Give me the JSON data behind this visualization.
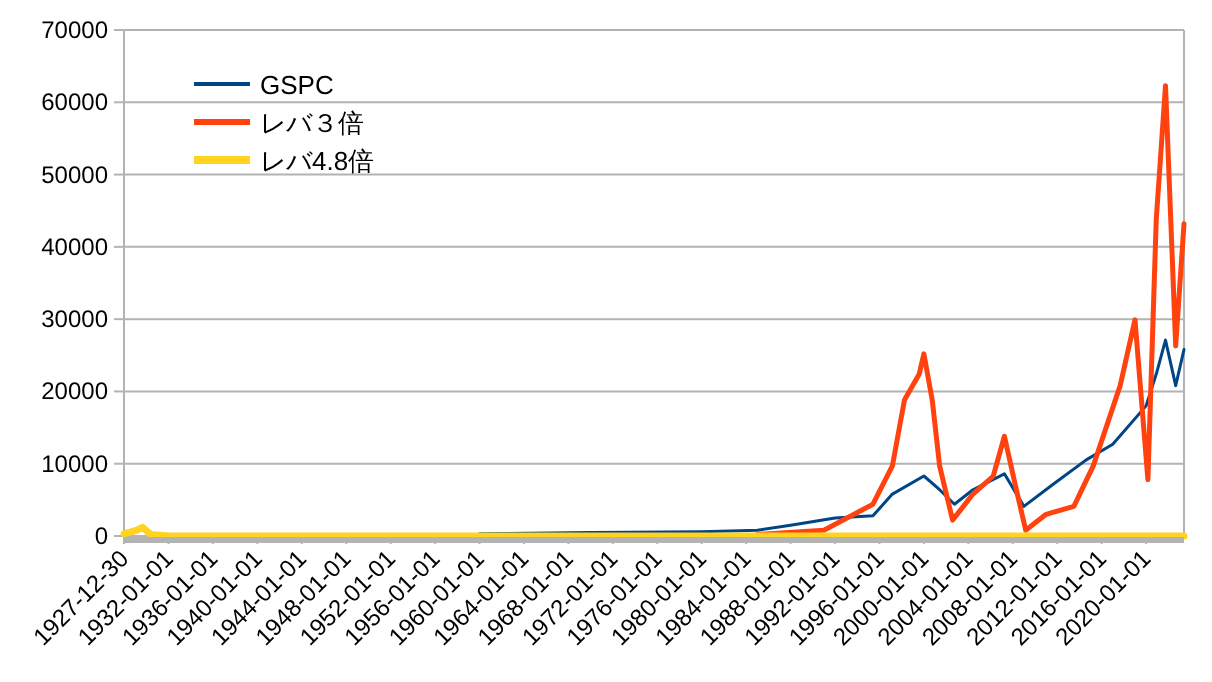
{
  "chart_data": {
    "type": "line",
    "xlim": [
      "1927-12-30",
      "2023-06-01"
    ],
    "xticks": [
      "1927-12-30",
      "1932-01-01",
      "1936-01-01",
      "1940-01-01",
      "1944-01-01",
      "1948-01-01",
      "1952-01-01",
      "1956-01-01",
      "1960-01-01",
      "1964-01-01",
      "1968-01-01",
      "1972-01-01",
      "1976-01-01",
      "1980-01-01",
      "1984-01-01",
      "1988-01-01",
      "1992-01-01",
      "1996-01-01",
      "2000-01-01",
      "2004-01-01",
      "2008-01-01",
      "2012-01-01",
      "2016-01-01",
      "2020-01-01"
    ],
    "ylim": [
      0,
      70000
    ],
    "yticks": [
      0,
      10000,
      20000,
      30000,
      40000,
      50000,
      60000,
      70000
    ],
    "grid": "y",
    "legend": "top left",
    "marker": "none",
    "line_style": "solid",
    "series": [
      {
        "name": "GSPC",
        "color": "#004586",
        "x": [
          "1960-01",
          "1970-01",
          "1980-01",
          "1985-01",
          "1988-01",
          "1992-01",
          "1995-06",
          "1997-03",
          "2000-01",
          "2001-06",
          "2002-10",
          "2004-06",
          "2007-04",
          "2009-01",
          "2011-09",
          "2014-08",
          "2017-01",
          "2020-01",
          "2020-12",
          "2021-10",
          "2022-09",
          "2023-06"
        ],
        "values": [
          300,
          500,
          600,
          800,
          1500,
          2500,
          2800,
          5800,
          8300,
          6400,
          4400,
          6400,
          8600,
          4100,
          7200,
          10500,
          12700,
          18000,
          22400,
          27100,
          20800,
          25800
        ]
      },
      {
        "name": "レバ３倍",
        "color": "#ff420e",
        "x": [
          "1985-01",
          "1991-01",
          "1995-06",
          "1997-03",
          "1998-04",
          "1999-08",
          "2000-01",
          "2000-10",
          "2001-06",
          "2002-08",
          "2004-06",
          "2006-04",
          "2007-04",
          "2008-04",
          "2009-03",
          "2011-01",
          "2013-07",
          "2015-04",
          "2017-09",
          "2019-01",
          "2020-03",
          "2020-12",
          "2021-10",
          "2022-09",
          "2023-06"
        ],
        "values": [
          200,
          800,
          4400,
          9700,
          18800,
          22400,
          25200,
          18800,
          9700,
          2200,
          5800,
          8300,
          13800,
          6900,
          800,
          3000,
          4100,
          9700,
          20800,
          29900,
          7800,
          43800,
          62300,
          26300,
          43200
        ]
      },
      {
        "name": "レバ4.8倍",
        "color": "#ffd320",
        "x": [
          "1928-01",
          "1929-03",
          "1929-09",
          "1930-06",
          "1932-01",
          "1960-01",
          "2000-01",
          "2023-06"
        ],
        "values": [
          300,
          800,
          1200,
          200,
          0,
          0,
          0,
          0
        ]
      }
    ]
  }
}
